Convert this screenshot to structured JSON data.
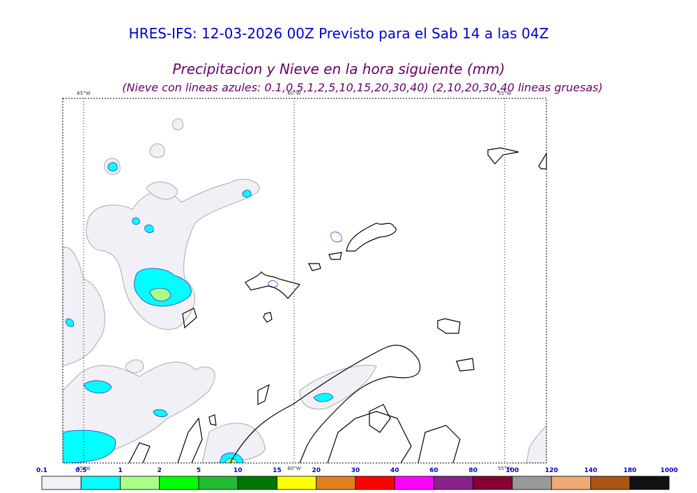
{
  "header": {
    "title": "HRES-IFS: 12-03-2026 00Z Previsto para el Sab 14 a las 04Z",
    "subtitle": "Precipitacion y Nieve en la hora siguiente (mm)",
    "note": "(Nieve con lineas azules: 0.1,0.5,1,2,5,10,15,20,30,40)  (2,10,20,30,40 lineas gruesas)"
  },
  "map": {
    "meridian_labels": [
      "65°W",
      "60°W",
      "55°W"
    ]
  },
  "colorbar": {
    "labels": [
      "0.1",
      "0.5",
      "1",
      "2",
      "5",
      "10",
      "15",
      "20",
      "30",
      "40",
      "60",
      "80",
      "100",
      "120",
      "140",
      "180",
      "1000"
    ],
    "colors": [
      "#f0f0f6",
      "#00ffff",
      "#aaff88",
      "#00ff00",
      "#22bb33",
      "#007700",
      "#ffff00",
      "#e08020",
      "#ff0000",
      "#ff00ff",
      "#882288",
      "#880033",
      "#999999",
      "#f0aa77",
      "#aa5511",
      "#111111"
    ]
  }
}
